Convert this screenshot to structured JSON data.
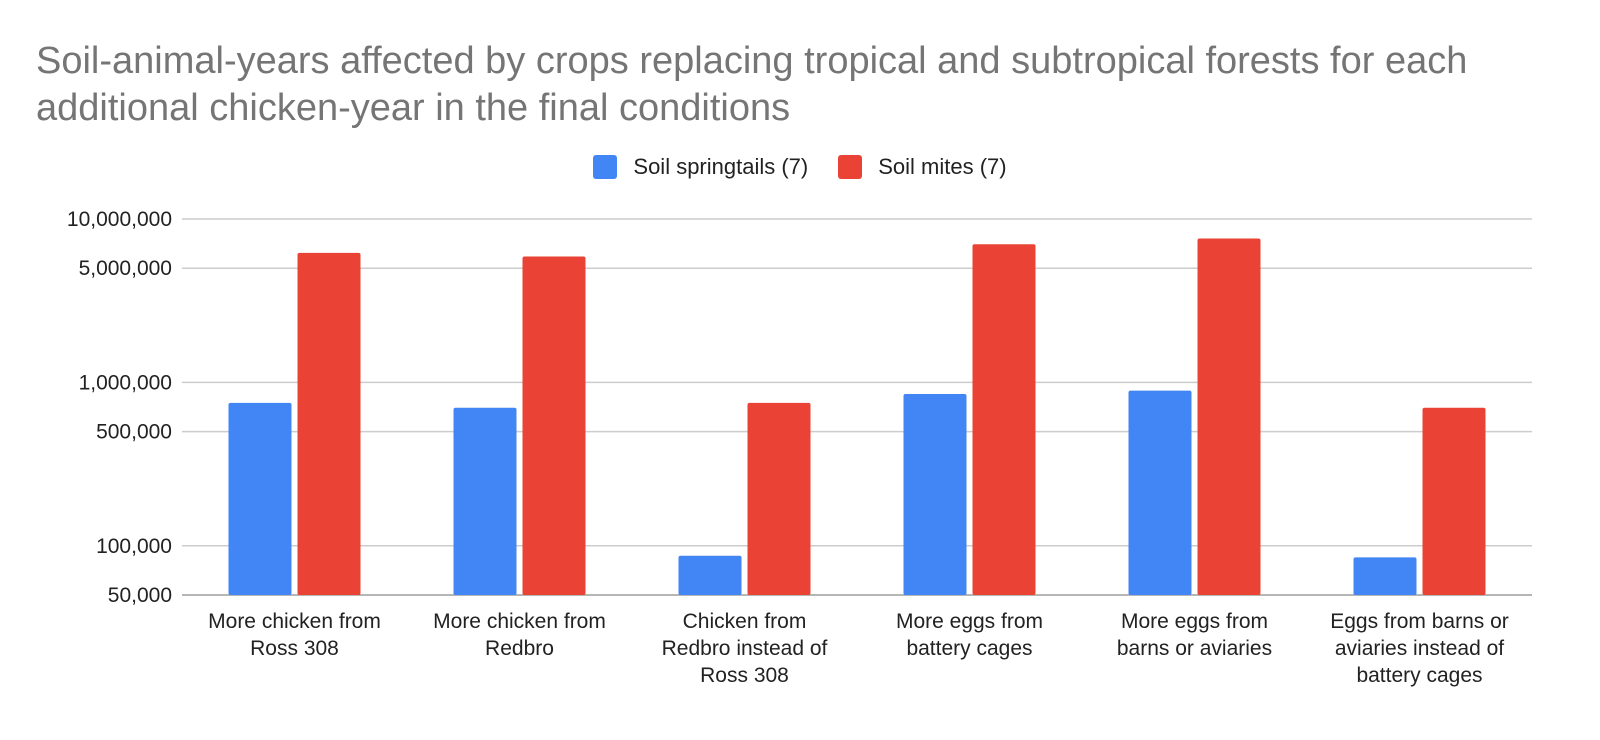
{
  "chart_data": {
    "type": "bar",
    "title": "Soil-animal-years affected by crops replacing tropical and subtropical forests for each additional chicken-year in the final conditions",
    "xlabel": "",
    "ylabel": "",
    "yscale": "log",
    "ylim": [
      50000,
      10000000
    ],
    "grid": true,
    "legend_position": "top",
    "y_ticks": [
      {
        "value": 50000,
        "label": "50,000"
      },
      {
        "value": 100000,
        "label": "100,000"
      },
      {
        "value": 500000,
        "label": "500,000"
      },
      {
        "value": 1000000,
        "label": "1,000,000"
      },
      {
        "value": 5000000,
        "label": "5,000,000"
      },
      {
        "value": 10000000,
        "label": "10,000,000"
      }
    ],
    "categories": [
      [
        "More chicken from",
        "Ross 308"
      ],
      [
        "More chicken from",
        "Redbro"
      ],
      [
        "Chicken from",
        "Redbro instead of",
        "Ross 308"
      ],
      [
        "More eggs from",
        "battery cages"
      ],
      [
        "More eggs from",
        "barns or aviaries"
      ],
      [
        "Eggs from barns or",
        "aviaries instead of",
        "battery cages"
      ]
    ],
    "series": [
      {
        "name": "Soil springtails (7)",
        "color": "#4285F4",
        "values": [
          750000,
          700000,
          87000,
          850000,
          890000,
          85000
        ]
      },
      {
        "name": "Soil mites (7)",
        "color": "#EA4335",
        "values": [
          6200000,
          5900000,
          750000,
          7000000,
          7600000,
          700000
        ]
      }
    ]
  }
}
